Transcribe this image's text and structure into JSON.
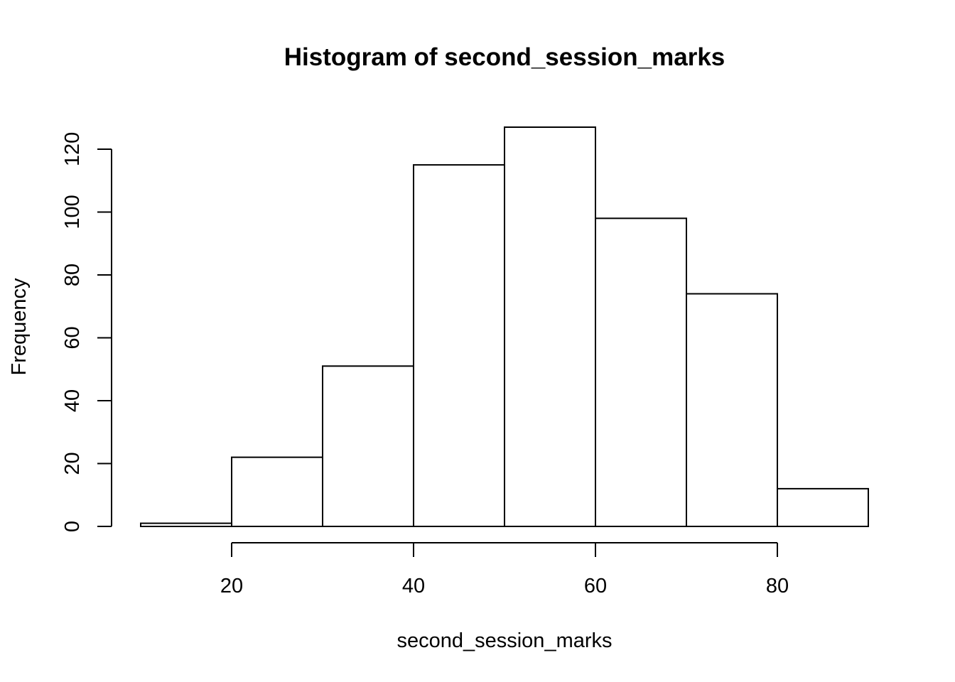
{
  "chart_data": {
    "type": "bar",
    "title": "Histogram of second_session_marks",
    "xlabel": "second_session_marks",
    "ylabel": "Frequency",
    "bin_edges": [
      10,
      20,
      30,
      40,
      50,
      60,
      70,
      80,
      90
    ],
    "values": [
      1,
      22,
      51,
      115,
      127,
      98,
      74,
      12
    ],
    "xlim": [
      10,
      90
    ],
    "ylim": [
      0,
      127
    ],
    "x_ticks": [
      20,
      40,
      60,
      80
    ],
    "y_ticks": [
      0,
      20,
      40,
      60,
      80,
      100,
      120
    ],
    "grid": false,
    "bar_fill": "#ffffff",
    "bar_stroke": "#000000"
  }
}
